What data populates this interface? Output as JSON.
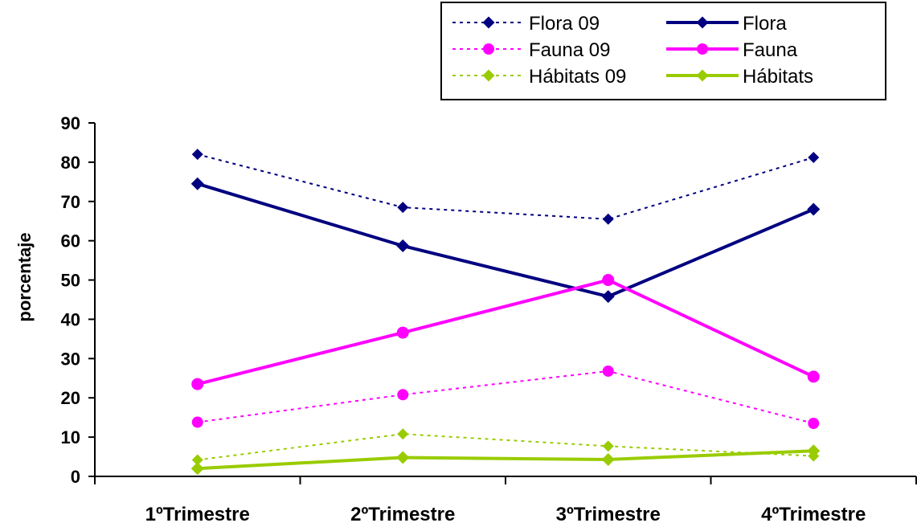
{
  "chart_data": {
    "type": "line",
    "categories": [
      "1ºTrimestre",
      "2ºTrimestre",
      "3ºTrimestre",
      "4ºTrimestre"
    ],
    "ylabel": "porcentaje",
    "xlabel": "",
    "ylim": [
      0,
      90
    ],
    "yticks": [
      0,
      10,
      20,
      30,
      40,
      50,
      60,
      70,
      80,
      90
    ],
    "grid": false,
    "legend_position": "top-right",
    "series": [
      {
        "name": "Flora 09",
        "values": [
          82,
          68.5,
          65.5,
          81.2
        ],
        "color": "#000080",
        "dashed": true,
        "marker": "diamond"
      },
      {
        "name": "Flora",
        "values": [
          74.5,
          58.7,
          45.8,
          68
        ],
        "color": "#000080",
        "dashed": false,
        "marker": "diamond"
      },
      {
        "name": "Fauna 09",
        "values": [
          13.8,
          20.8,
          26.8,
          13.5
        ],
        "color": "#ff00ff",
        "dashed": true,
        "marker": "circle"
      },
      {
        "name": "Fauna",
        "values": [
          23.5,
          36.6,
          50,
          25.4
        ],
        "color": "#ff00ff",
        "dashed": false,
        "marker": "circle"
      },
      {
        "name": "Hábitats 09",
        "values": [
          4.2,
          10.8,
          7.7,
          5.2
        ],
        "color": "#99cc00",
        "dashed": true,
        "marker": "diamond"
      },
      {
        "name": "Hábitats",
        "values": [
          2,
          4.8,
          4.3,
          6.5
        ],
        "color": "#99cc00",
        "dashed": false,
        "marker": "diamond"
      }
    ]
  }
}
